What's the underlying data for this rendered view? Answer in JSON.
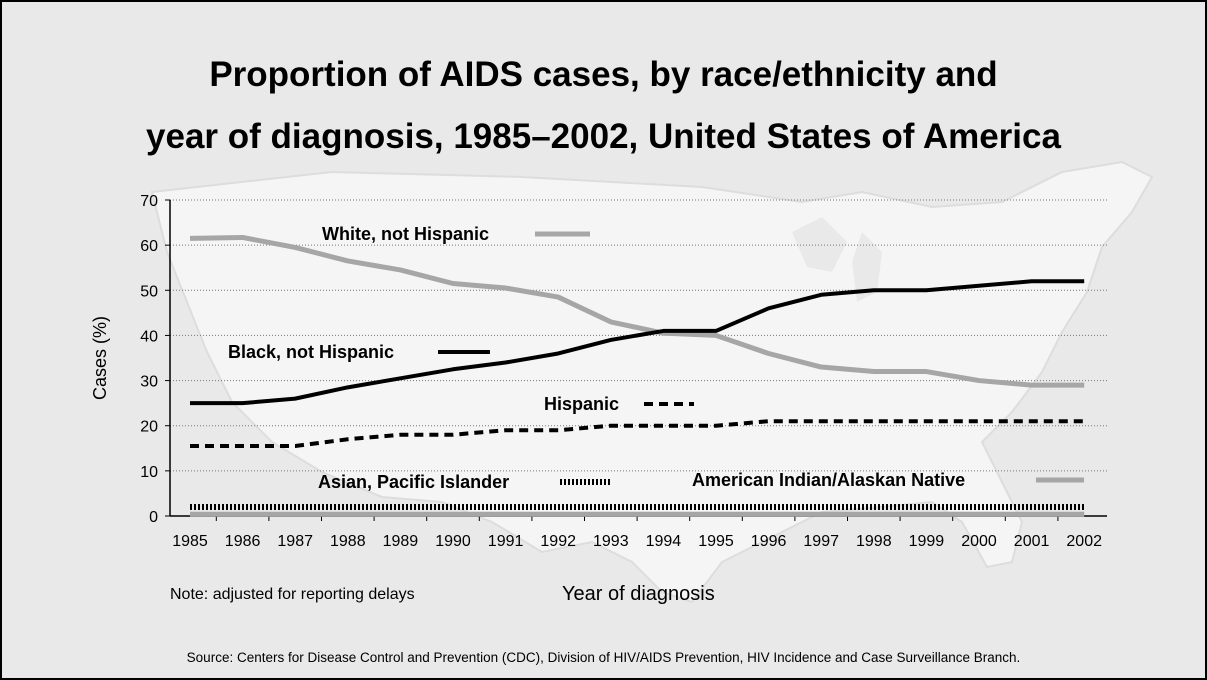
{
  "title_line1": "Proportion of AIDS cases, by race/ethnicity and",
  "title_line2": "year of diagnosis, 1985–2002, United States of America",
  "note": "Note: adjusted for reporting delays",
  "source": "Source: Centers for Disease Control and Prevention (CDC), Division of HIV/AIDS Prevention, HIV Incidence and Case Surveillance Branch.",
  "colors": {
    "background": "#e9e9e9",
    "map": "#f7f7f7",
    "black": "#000000",
    "gray": "#a6a6a6"
  },
  "chart_data": {
    "type": "line",
    "xlabel": "Year of diagnosis",
    "ylabel": "Cases (%)",
    "ylim": [
      0,
      70
    ],
    "yticks": [
      0,
      10,
      20,
      30,
      40,
      50,
      60,
      70
    ],
    "grid": true,
    "categories": [
      "1985",
      "1986",
      "1987",
      "1988",
      "1989",
      "1990",
      "1991",
      "1992",
      "1993",
      "1994",
      "1995",
      "1996",
      "1997",
      "1998",
      "1999",
      "2000",
      "2001",
      "2002"
    ],
    "series": [
      {
        "name": "White, not Hispanic",
        "style": "solid-gray",
        "values": [
          61.5,
          61.7,
          59.5,
          56.5,
          54.5,
          51.5,
          50.5,
          48.5,
          43,
          40.5,
          40,
          36,
          33,
          32,
          32,
          30,
          29,
          29
        ]
      },
      {
        "name": "Black, not Hispanic",
        "style": "solid-black",
        "values": [
          25,
          25,
          26,
          28.5,
          30.5,
          32.5,
          34,
          36,
          39,
          41,
          41,
          46,
          49,
          50,
          50,
          51,
          52,
          52
        ]
      },
      {
        "name": "Hispanic",
        "style": "dashed-black",
        "values": [
          15.5,
          15.5,
          15.5,
          17,
          18,
          18,
          19,
          19,
          20,
          20,
          20,
          21,
          21,
          21,
          21,
          21,
          21,
          21
        ]
      },
      {
        "name": "Asian, Pacific Islander",
        "style": "dotted-black",
        "values": [
          2,
          2,
          2,
          2,
          2,
          2,
          2,
          2,
          2,
          2,
          2,
          2,
          2,
          2,
          2,
          2,
          2,
          2
        ]
      },
      {
        "name": "American Indian/Alaskan Native",
        "style": "solid-gray",
        "values": [
          0.4,
          0.4,
          0.4,
          0.4,
          0.4,
          0.4,
          0.4,
          0.4,
          0.4,
          0.4,
          0.4,
          0.4,
          0.4,
          0.4,
          0.4,
          0.4,
          0.4,
          0.4
        ]
      }
    ]
  }
}
